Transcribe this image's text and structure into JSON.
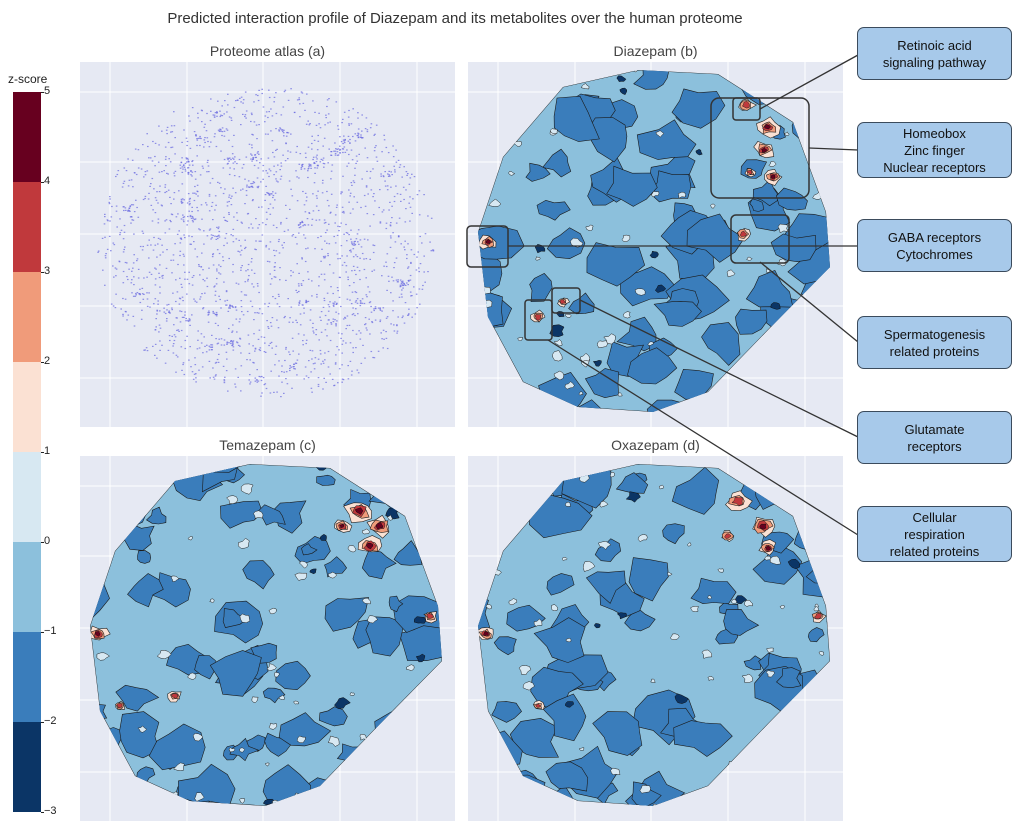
{
  "figure": {
    "title": "Predicted interaction profile of Diazepam and its metabolites over the human proteome"
  },
  "colorbar": {
    "title": "z-score",
    "ticks": [
      "5",
      "4",
      "3",
      "2",
      "1",
      "0",
      "−1",
      "−2",
      "−3"
    ],
    "levels": [
      {
        "from": 4,
        "to": 5,
        "color": "#67001f"
      },
      {
        "from": 3,
        "to": 4,
        "color": "#c0393c"
      },
      {
        "from": 2,
        "to": 3,
        "color": "#f09b7a"
      },
      {
        "from": 1,
        "to": 2,
        "color": "#fbe1d3"
      },
      {
        "from": 0,
        "to": 1,
        "color": "#d7e8f2"
      },
      {
        "from": -1,
        "to": 0,
        "color": "#8cc0dc"
      },
      {
        "from": -2,
        "to": -1,
        "color": "#3a7dbb"
      },
      {
        "from": -3,
        "to": -2,
        "color": "#0b3566"
      }
    ]
  },
  "panels": {
    "a": {
      "title": "Proteome atlas (a)"
    },
    "b": {
      "title": "Diazepam (b)"
    },
    "c": {
      "title": "Temazepam (c)"
    },
    "d": {
      "title": "Oxazepam (d)"
    }
  },
  "callouts": [
    {
      "id": "retinoic",
      "lines": [
        "Retinoic acid",
        "signaling pathway"
      ]
    },
    {
      "id": "homeobox",
      "lines": [
        "Homeobox",
        "Zinc finger",
        "Nuclear receptors"
      ]
    },
    {
      "id": "gaba",
      "lines": [
        "GABA receptors",
        "Cytochromes"
      ]
    },
    {
      "id": "spermato",
      "lines": [
        "Spermatogenesis",
        "related proteins"
      ]
    },
    {
      "id": "glutamate",
      "lines": [
        "Glutamate",
        "receptors"
      ]
    },
    {
      "id": "cellular",
      "lines": [
        "Cellular",
        "respiration",
        "related proteins"
      ]
    }
  ],
  "chart_data": [
    {
      "type": "scatter",
      "title": "Proteome atlas (a)",
      "description": "2D embedding of human proteins (points, no axis labels)"
    },
    {
      "type": "heatmap",
      "title": "Diazepam (b)",
      "zlabel": "z-score",
      "zlim": [
        -3,
        5
      ],
      "hotspots": [
        "Retinoic acid signaling pathway",
        "Homeobox / Zinc finger / Nuclear receptors",
        "GABA receptors / Cytochromes",
        "Spermatogenesis related proteins",
        "Glutamate receptors",
        "Cellular respiration related proteins"
      ]
    },
    {
      "type": "heatmap",
      "title": "Temazepam (c)",
      "zlabel": "z-score",
      "zlim": [
        -3,
        5
      ]
    },
    {
      "type": "heatmap",
      "title": "Oxazepam (d)",
      "zlabel": "z-score",
      "zlim": [
        -3,
        5
      ]
    }
  ]
}
